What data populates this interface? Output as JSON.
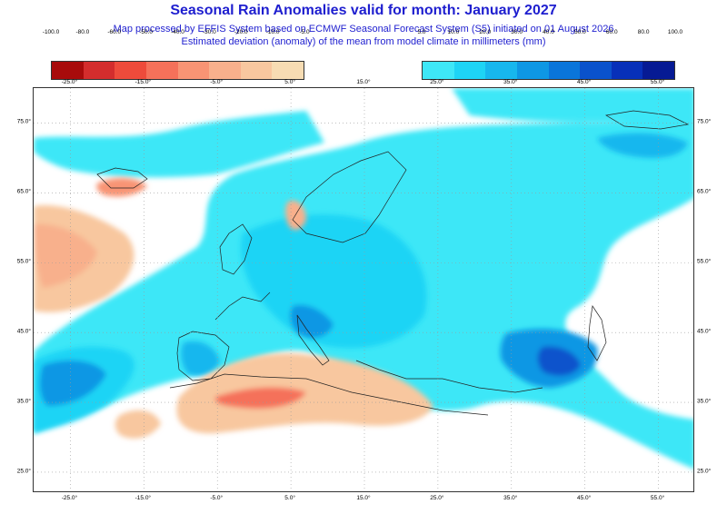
{
  "header": {
    "title": "Seasonal Rain Anomalies valid for month: January 2027",
    "subtitle_line1": "Map processed by EFFIS System based on ECMWF Seasonal Forecast System (S5) initiated on 01 August 2026",
    "subtitle_line2": "Estimated deviation (anomaly) of the mean from model climate in millimeters (mm)"
  },
  "legend_negative": {
    "labels": [
      "-100.0",
      "-80.0",
      "-60.0",
      "-50.0",
      "-40.0",
      "-30.0",
      "-20.0",
      "-10.0",
      "-5.0"
    ],
    "colors": [
      "#a80b0b",
      "#d42d2d",
      "#ee4b3b",
      "#f5715a",
      "#f89474",
      "#f8b08c",
      "#f8c79f",
      "#f7dcb3"
    ]
  },
  "legend_positive": {
    "labels": [
      "5.0",
      "10.0",
      "20.0",
      "30.0",
      "40.0",
      "50.0",
      "60.0",
      "80.0",
      "100.0"
    ],
    "colors": [
      "#3ee7f7",
      "#1ed4f5",
      "#17b7ee",
      "#0e97e4",
      "#0a75da",
      "#0a52cc",
      "#0730b9",
      "#061a94"
    ]
  },
  "axes": {
    "lon_labels": [
      "-25.0°",
      "-15.0°",
      "-5.0°",
      "5.0°",
      "15.0°",
      "25.0°",
      "35.0°",
      "45.0°",
      "55.0°"
    ],
    "lat_labels": [
      "75.0°",
      "65.0°",
      "55.0°",
      "45.0°",
      "35.0°",
      "25.0°"
    ]
  },
  "map": {
    "projection": "lat-lon",
    "lon_range": [
      -30,
      60
    ],
    "lat_range": [
      22,
      80
    ],
    "grid": "dotted",
    "colors": {
      "ocean_background": "#ffffff",
      "coastline": "#222222",
      "gridline": "#9a9a9a"
    }
  }
}
